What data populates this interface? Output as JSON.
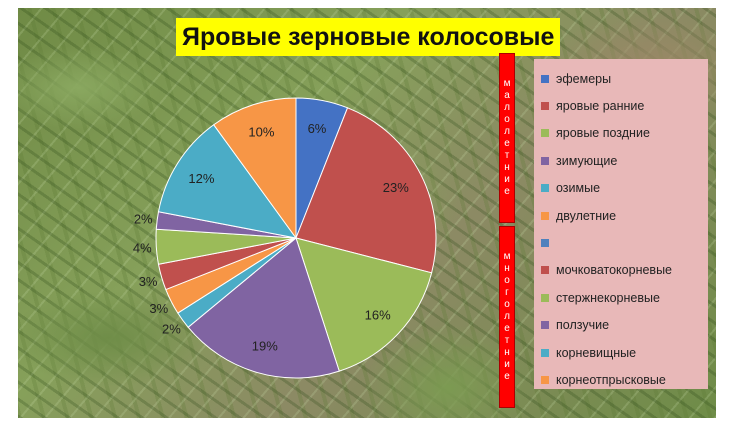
{
  "slide": {
    "title": "Яровые зерновые колосовые",
    "group_top_letters": [
      "м",
      "а",
      "л",
      "о",
      "л",
      "е",
      "т",
      "н",
      "и",
      "е"
    ],
    "group_bottom_letters": [
      "м",
      "н",
      "о",
      "г",
      "о",
      "л",
      "е",
      "т",
      "н",
      "и",
      "е"
    ]
  },
  "chart_data": {
    "type": "pie",
    "title": "Яровые зерновые колосовые",
    "legend_position": "right",
    "slices": [
      {
        "label": "эфемеры",
        "value": 6,
        "data_label": "6%",
        "color": "#4472c4"
      },
      {
        "label": "яровые ранние",
        "value": 23,
        "data_label": "23%",
        "color": "#c0504d"
      },
      {
        "label": "яровые поздние",
        "value": 16,
        "data_label": "16%",
        "color": "#9bbb59"
      },
      {
        "label": "зимующие",
        "value": 19,
        "data_label": "19%",
        "color": "#8064a2"
      },
      {
        "label": "озимые",
        "value": 2,
        "data_label": "2%",
        "color": "#4bacc6"
      },
      {
        "label": "двулетние",
        "value": 3,
        "data_label": "3%",
        "color": "#f79646"
      },
      {
        "label": "",
        "value": 0,
        "data_label": "",
        "color": "#4f81bd"
      },
      {
        "label": "мочковатокорневые",
        "value": 3,
        "data_label": "3%",
        "color": "#c0504d"
      },
      {
        "label": "стержнекорневые",
        "value": 4,
        "data_label": "4%",
        "color": "#9bbb59"
      },
      {
        "label": "ползучие",
        "value": 2,
        "data_label": "2%",
        "color": "#8064a2"
      },
      {
        "label": "корневищные",
        "value": 12,
        "data_label": "12%",
        "color": "#4bacc6"
      },
      {
        "label": "корнеотпрысковые",
        "value": 10,
        "data_label": "10%",
        "color": "#f79646"
      }
    ]
  }
}
